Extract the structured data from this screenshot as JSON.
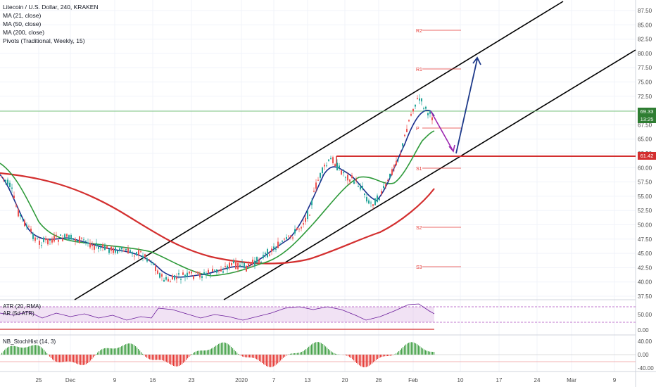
{
  "legend": {
    "symbol": "Litecoin / U.S. Dollar, 240, KRAKEN",
    "ma21": "MA (21, close)",
    "ma50": "MA (50, close)",
    "ma200": "MA (200, close)",
    "pivots": "Pivots (Traditional, Weekly, 15)"
  },
  "indicators": {
    "atr": "ATR (20, RMA)",
    "atr2": "AR (5d ATR)",
    "stoch": "NB_StochHist (14, 3)"
  },
  "price_axis": {
    "ticks": [
      "87.50",
      "85.00",
      "82.50",
      "80.00",
      "77.50",
      "75.00",
      "72.50",
      "70.00",
      "67.50",
      "65.00",
      "62.50",
      "60.00",
      "57.50",
      "55.00",
      "52.50",
      "50.00",
      "47.50",
      "45.00",
      "42.50",
      "40.00",
      "37.50"
    ],
    "current_price": "69.33",
    "countdown": "13:25",
    "level_price": "61.42"
  },
  "atr_axis": {
    "ticks": [
      "50.00",
      "0.00"
    ]
  },
  "stoch_axis": {
    "ticks": [
      "40.00",
      "0.00",
      "-40.00"
    ]
  },
  "time_axis": {
    "ticks": [
      "25",
      "Dec",
      "9",
      "16",
      "23",
      "2020",
      "7",
      "13",
      "20",
      "26",
      "Feb",
      "10",
      "17",
      "24",
      "Mar",
      "9"
    ]
  },
  "pivots": {
    "r2": "R2",
    "r1": "R1",
    "p": "P",
    "s1": "S1",
    "s2": "S2",
    "s3": "S3"
  },
  "colors": {
    "ma21": "#1a2e8c",
    "ma50": "#2e9a3a",
    "ma200": "#d32f2f",
    "candle_up": "#26a69a",
    "candle_down": "#ef5350",
    "channel": "#000000",
    "pivot": "#e53935",
    "arrow_up": "#1e3a8a",
    "arrow_down": "#9c27b0",
    "current_price": "#2e7d32",
    "level_line": "#d32f2f"
  }
}
